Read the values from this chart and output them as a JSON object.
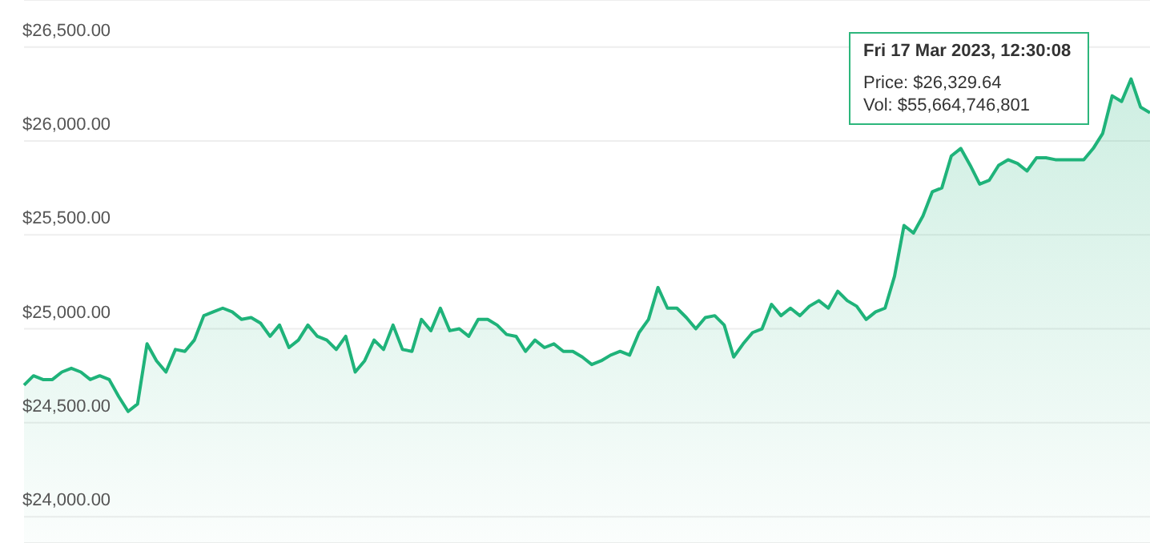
{
  "chart_data": {
    "type": "area",
    "categories": [
      null,
      null,
      null,
      null,
      null,
      null,
      null,
      null,
      null,
      null,
      null,
      null,
      null,
      null,
      null,
      null,
      null,
      null,
      null,
      null,
      null,
      null,
      null,
      null,
      null,
      null,
      null,
      null,
      null,
      null,
      null,
      null,
      null,
      null,
      null,
      null,
      null,
      null,
      null,
      null,
      null,
      null,
      null,
      null,
      null,
      null,
      null,
      null,
      null,
      null,
      null,
      null,
      null,
      null,
      null,
      null,
      null,
      null,
      null,
      null,
      null,
      null,
      null,
      null,
      null,
      null,
      null,
      null,
      null,
      null,
      null,
      null,
      null,
      null,
      null,
      null,
      null,
      null,
      null,
      null,
      null,
      null,
      null,
      null,
      null,
      null,
      null,
      null,
      null,
      null,
      null,
      null,
      null,
      null,
      null,
      null,
      null,
      null,
      null,
      null,
      null,
      null,
      null,
      null,
      null,
      null,
      null,
      null,
      null,
      null,
      null,
      null,
      null,
      null,
      null,
      null,
      null,
      null,
      null,
      null
    ],
    "series": [
      {
        "color": "#1fb37a",
        "values": [
          24700,
          24750,
          24730,
          24730,
          24770,
          24790,
          24770,
          24730,
          24750,
          24730,
          24640,
          24560,
          24600,
          24920,
          24830,
          24770,
          24890,
          24880,
          24940,
          25070,
          25090,
          25110,
          25090,
          25050,
          25060,
          25030,
          24960,
          25020,
          24900,
          24940,
          25020,
          24960,
          24940,
          24890,
          24960,
          24770,
          24830,
          24940,
          24890,
          25020,
          24890,
          24880,
          25050,
          24990,
          25110,
          24990,
          25000,
          24960,
          25050,
          25050,
          25020,
          24970,
          24960,
          24880,
          24940,
          24900,
          24920,
          24880,
          24880,
          24850,
          24810,
          24830,
          24860,
          24880,
          24860,
          24980,
          25050,
          25220,
          25110,
          25110,
          25060,
          25000,
          25060,
          25070,
          25020,
          24850,
          24920,
          24980,
          25000,
          25130,
          25070,
          25110,
          25070,
          25120,
          25150,
          25110,
          25200,
          25150,
          25120,
          25050,
          25090,
          25110,
          25280,
          25550,
          25510,
          25600,
          25730,
          25750,
          25920,
          25960,
          25870,
          25770,
          25790,
          25870,
          25900,
          25880,
          25840,
          25910,
          25910,
          25900,
          25900,
          25900,
          25900,
          25960,
          26040,
          26240,
          26210,
          26330,
          26180,
          26150
        ]
      }
    ],
    "ylim": [
      23860,
      26750
    ],
    "yticks": [
      {
        "value": 24000,
        "label": "$24,000.00"
      },
      {
        "value": 24500,
        "label": "$24,500.00"
      },
      {
        "value": 25000,
        "label": "$25,000.00"
      },
      {
        "value": 25500,
        "label": "$25,500.00"
      },
      {
        "value": 26000,
        "label": "$26,000.00"
      },
      {
        "value": 26500,
        "label": "$26,500.00"
      }
    ],
    "grid": "y",
    "tick_labels": "y",
    "annotations": [
      "Fri 17 Mar 2023, 12:30:08",
      "Price: $26,329.64",
      "Vol: $55,664,746,801"
    ]
  }
}
